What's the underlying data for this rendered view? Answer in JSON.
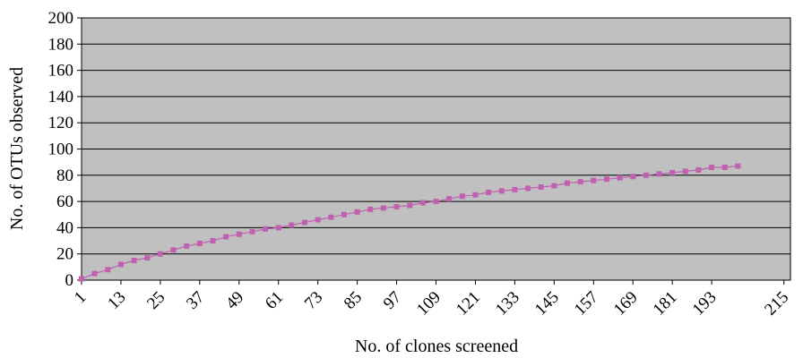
{
  "chart_data": {
    "type": "line",
    "title": "",
    "xlabel": "No. of clones screened",
    "ylabel": "No. of OTUs observed",
    "ylim": [
      0,
      200
    ],
    "yticks": [
      0,
      20,
      40,
      60,
      80,
      100,
      120,
      140,
      160,
      180,
      200
    ],
    "xlim": [
      1,
      217
    ],
    "xticks": [
      1,
      13,
      25,
      37,
      49,
      61,
      73,
      85,
      97,
      109,
      121,
      133,
      145,
      157,
      169,
      181,
      193,
      215
    ],
    "grid": true,
    "legend": "none",
    "colors": {
      "plot_background": "#c0c0c0",
      "gridline": "#000000",
      "series": "#c060b0"
    },
    "series": [
      {
        "x": [
          1,
          5,
          9,
          13,
          17,
          21,
          25,
          29,
          33,
          37,
          41,
          45,
          49,
          53,
          57,
          61,
          65,
          69,
          73,
          77,
          81,
          85,
          89,
          93,
          97,
          101,
          105,
          109,
          113,
          117,
          121,
          125,
          129,
          133,
          137,
          141,
          145,
          149,
          153,
          157,
          161,
          165,
          169,
          173,
          177,
          181,
          185,
          189,
          193,
          197,
          201
        ],
        "values": [
          1,
          5,
          8,
          12,
          15,
          17,
          20,
          23,
          26,
          28,
          30,
          33,
          35,
          37,
          39,
          40,
          42,
          44,
          46,
          48,
          50,
          52,
          54,
          55,
          56,
          57,
          59,
          60,
          62,
          64,
          65,
          67,
          68,
          69,
          70,
          71,
          72,
          74,
          75,
          76,
          77,
          78,
          79,
          80,
          81,
          82,
          83,
          84,
          86,
          86,
          87
        ]
      }
    ]
  }
}
